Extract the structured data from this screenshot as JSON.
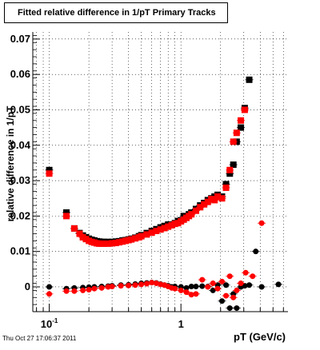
{
  "title": "Fitted relative difference in 1/pT  Primary Tracks",
  "footer": "Thu Oct 27 17:06:37 2011",
  "chart_data": {
    "type": "scatter",
    "title": "Fitted relative difference in 1/pT  Primary Tracks",
    "xlabel": "pT (GeV/c)",
    "ylabel": "relative difference in 1/pT",
    "x_scale": "log",
    "xlim": [
      0.075,
      6.5
    ],
    "ylim": [
      -0.007,
      0.072
    ],
    "grid": true,
    "y_ticks": [
      {
        "v": 0,
        "label": "0"
      },
      {
        "v": 0.01,
        "label": "0.01"
      },
      {
        "v": 0.02,
        "label": "0.02"
      },
      {
        "v": 0.03,
        "label": "0.03"
      },
      {
        "v": 0.04,
        "label": "0.04"
      },
      {
        "v": 0.05,
        "label": "0.05"
      },
      {
        "v": 0.06,
        "label": "0.06"
      },
      {
        "v": 0.07,
        "label": "0.07"
      }
    ],
    "x_tick_labels": [
      {
        "v": 0.1,
        "base": "10",
        "exp": "-1"
      },
      {
        "v": 1,
        "base": "1",
        "exp": ""
      }
    ],
    "series": [
      {
        "marker": "square",
        "color": "#000000",
        "points": [
          [
            0.1,
            0.033
          ],
          [
            0.135,
            0.021
          ],
          [
            0.155,
            0.0165
          ],
          [
            0.17,
            0.0152
          ],
          [
            0.18,
            0.0145
          ],
          [
            0.19,
            0.014
          ],
          [
            0.2,
            0.0136
          ],
          [
            0.21,
            0.0133
          ],
          [
            0.22,
            0.0131
          ],
          [
            0.23,
            0.0129
          ],
          [
            0.24,
            0.0128
          ],
          [
            0.25,
            0.0127
          ],
          [
            0.26,
            0.0127
          ],
          [
            0.28,
            0.0127
          ],
          [
            0.3,
            0.0127
          ],
          [
            0.32,
            0.0128
          ],
          [
            0.34,
            0.0129
          ],
          [
            0.36,
            0.0131
          ],
          [
            0.38,
            0.0132
          ],
          [
            0.4,
            0.0134
          ],
          [
            0.42,
            0.0136
          ],
          [
            0.45,
            0.0139
          ],
          [
            0.48,
            0.0143
          ],
          [
            0.5,
            0.0146
          ],
          [
            0.55,
            0.0152
          ],
          [
            0.6,
            0.0158
          ],
          [
            0.65,
            0.0163
          ],
          [
            0.7,
            0.0168
          ],
          [
            0.75,
            0.0172
          ],
          [
            0.8,
            0.0176
          ],
          [
            0.85,
            0.0176
          ],
          [
            0.9,
            0.018
          ],
          [
            0.95,
            0.0186
          ],
          [
            1.0,
            0.0188
          ],
          [
            1.05,
            0.02
          ],
          [
            1.1,
            0.0195
          ],
          [
            1.15,
            0.0205
          ],
          [
            1.2,
            0.021
          ],
          [
            1.3,
            0.022
          ],
          [
            1.4,
            0.023
          ],
          [
            1.5,
            0.0237
          ],
          [
            1.6,
            0.0245
          ],
          [
            1.7,
            0.025
          ],
          [
            1.8,
            0.0255
          ],
          [
            1.9,
            0.026
          ],
          [
            2.05,
            0.0255
          ],
          [
            2.2,
            0.029
          ],
          [
            2.35,
            0.032
          ],
          [
            2.5,
            0.0345
          ],
          [
            2.65,
            0.041
          ],
          [
            2.85,
            0.045
          ],
          [
            3.05,
            0.0505
          ],
          [
            3.3,
            0.0585
          ]
        ]
      },
      {
        "marker": "square",
        "color": "#ff0000",
        "points": [
          [
            0.1,
            0.032
          ],
          [
            0.135,
            0.02
          ],
          [
            0.155,
            0.0165
          ],
          [
            0.17,
            0.015
          ],
          [
            0.18,
            0.014
          ],
          [
            0.19,
            0.0135
          ],
          [
            0.2,
            0.013
          ],
          [
            0.21,
            0.0127
          ],
          [
            0.22,
            0.0125
          ],
          [
            0.23,
            0.0123
          ],
          [
            0.24,
            0.0122
          ],
          [
            0.25,
            0.0122
          ],
          [
            0.26,
            0.0122
          ],
          [
            0.28,
            0.0122
          ],
          [
            0.3,
            0.0123
          ],
          [
            0.32,
            0.0124
          ],
          [
            0.34,
            0.0126
          ],
          [
            0.36,
            0.0128
          ],
          [
            0.38,
            0.013
          ],
          [
            0.4,
            0.0132
          ],
          [
            0.42,
            0.0134
          ],
          [
            0.45,
            0.0137
          ],
          [
            0.48,
            0.014
          ],
          [
            0.5,
            0.0143
          ],
          [
            0.55,
            0.0148
          ],
          [
            0.6,
            0.0153
          ],
          [
            0.65,
            0.0158
          ],
          [
            0.7,
            0.0162
          ],
          [
            0.75,
            0.0166
          ],
          [
            0.8,
            0.017
          ],
          [
            0.85,
            0.0174
          ],
          [
            0.9,
            0.0178
          ],
          [
            0.95,
            0.018
          ],
          [
            1.0,
            0.0185
          ],
          [
            1.05,
            0.019
          ],
          [
            1.1,
            0.0195
          ],
          [
            1.15,
            0.02
          ],
          [
            1.2,
            0.0205
          ],
          [
            1.3,
            0.0215
          ],
          [
            1.4,
            0.0225
          ],
          [
            1.5,
            0.0233
          ],
          [
            1.6,
            0.024
          ],
          [
            1.7,
            0.0248
          ],
          [
            1.8,
            0.0245
          ],
          [
            1.9,
            0.0255
          ],
          [
            2.05,
            0.025
          ],
          [
            2.2,
            0.028
          ],
          [
            2.35,
            0.033
          ],
          [
            2.5,
            0.041
          ],
          [
            2.65,
            0.0435
          ],
          [
            2.85,
            0.047
          ],
          [
            3.05,
            0.05
          ]
        ]
      },
      {
        "marker": "circle",
        "color": "#000000",
        "points": [
          [
            0.1,
            0.0
          ],
          [
            0.135,
            -0.0005
          ],
          [
            0.155,
            -0.0003
          ],
          [
            0.18,
            -0.0002
          ],
          [
            0.2,
            -0.0001
          ],
          [
            0.22,
            0.0
          ],
          [
            0.25,
            0.0001
          ],
          [
            0.28,
            0.0002
          ],
          [
            0.3,
            0.0003
          ],
          [
            0.35,
            0.0005
          ],
          [
            0.4,
            0.0006
          ],
          [
            0.45,
            0.0008
          ],
          [
            0.5,
            0.001
          ],
          [
            0.55,
            0.0011
          ],
          [
            0.6,
            0.0012
          ],
          [
            0.65,
            0.0011
          ],
          [
            0.7,
            0.0008
          ],
          [
            0.75,
            0.0005
          ],
          [
            0.8,
            0.0003
          ],
          [
            0.85,
            0.0
          ],
          [
            0.9,
            0.0001
          ],
          [
            1.0,
            0.0
          ],
          [
            1.1,
            -0.0003
          ],
          [
            1.2,
            0.0001
          ],
          [
            1.3,
            0.0001
          ],
          [
            1.45,
            0.0002
          ],
          [
            1.6,
            0.0001
          ],
          [
            1.75,
            -0.001
          ],
          [
            1.9,
            0.0005
          ],
          [
            2.05,
            -0.004
          ],
          [
            2.2,
            0.0005
          ],
          [
            2.35,
            -0.006
          ],
          [
            2.5,
            -0.002
          ],
          [
            2.65,
            -0.006
          ],
          [
            2.85,
            0.0
          ],
          [
            3.05,
            0.0003
          ],
          [
            3.3,
            0.0005
          ],
          [
            3.7,
            0.01
          ],
          [
            4.1,
            0.0
          ],
          [
            5.5,
            0.0007
          ]
        ]
      },
      {
        "marker": "circle",
        "color": "#ff0000",
        "points": [
          [
            0.1,
            -0.002
          ],
          [
            0.135,
            -0.0012
          ],
          [
            0.155,
            -0.0012
          ],
          [
            0.18,
            -0.001
          ],
          [
            0.2,
            -0.0008
          ],
          [
            0.22,
            -0.0005
          ],
          [
            0.25,
            -0.0003
          ],
          [
            0.28,
            0.0
          ],
          [
            0.3,
            0.0001
          ],
          [
            0.35,
            0.0003
          ],
          [
            0.4,
            0.0004
          ],
          [
            0.45,
            0.0005
          ],
          [
            0.5,
            0.0007
          ],
          [
            0.55,
            0.0009
          ],
          [
            0.6,
            0.0012
          ],
          [
            0.65,
            0.001
          ],
          [
            0.7,
            0.0007
          ],
          [
            0.75,
            0.0005
          ],
          [
            0.8,
            0.0001
          ],
          [
            0.85,
            -0.0003
          ],
          [
            0.9,
            -0.0005
          ],
          [
            1.0,
            -0.001
          ],
          [
            1.1,
            -0.0015
          ],
          [
            1.2,
            -0.0022
          ],
          [
            1.3,
            -0.002
          ],
          [
            1.45,
            0.002
          ],
          [
            1.6,
            0.0
          ],
          [
            1.75,
            0.001
          ],
          [
            1.9,
            -0.0005
          ],
          [
            2.05,
            0.0015
          ],
          [
            2.2,
            -0.0025
          ],
          [
            2.35,
            0.003
          ],
          [
            2.5,
            -0.003
          ],
          [
            2.65,
            -0.001
          ],
          [
            2.85,
            0.001
          ],
          [
            3.1,
            0.004
          ],
          [
            3.5,
            0.003
          ],
          [
            4.1,
            0.018
          ]
        ]
      }
    ]
  }
}
